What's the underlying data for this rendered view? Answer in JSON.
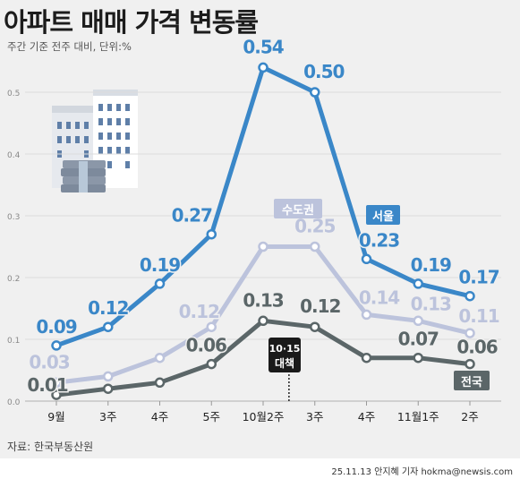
{
  "header": {
    "title": "아파트 매매 가격 변동률",
    "subtitle": "주간 기준 전주 대비, 단위:%"
  },
  "footer": {
    "source": "자료: 한국부동산원",
    "credit": "25.11.13 안지혜 기자 hokma@newsis.com"
  },
  "annotation": {
    "line1": "10·15",
    "line2": "대책"
  },
  "colors": {
    "seoul": "#3a87c8",
    "metro": "#bcc3dc",
    "national": "#5b6668",
    "panel": "#f0f0f0"
  },
  "chart_data": {
    "type": "line",
    "categories": [
      "9월",
      "3주",
      "4주",
      "5주",
      "10월2주",
      "3주",
      "4주",
      "11월1주",
      "2주"
    ],
    "ylim": [
      0,
      0.6
    ],
    "yticks": [
      "0.0",
      "0.1",
      "0.2",
      "0.3",
      "0.4",
      "0.5"
    ],
    "series": [
      {
        "name": "서울",
        "key": "seoul",
        "values": [
          0.09,
          0.12,
          0.19,
          0.27,
          0.54,
          0.5,
          0.23,
          0.19,
          0.17
        ],
        "labels": [
          "0.09",
          "0.12",
          "0.19",
          "0.27",
          "0.54",
          "0.50",
          "0.23",
          "0.19",
          "0.17"
        ]
      },
      {
        "name": "수도권",
        "key": "metro",
        "values": [
          0.03,
          0.04,
          0.07,
          0.12,
          0.25,
          0.25,
          0.14,
          0.13,
          0.11
        ],
        "labels": [
          "0.03",
          "",
          "",
          "0.12",
          "",
          "0.25",
          "0.14",
          "0.13",
          "0.11"
        ]
      },
      {
        "name": "전국",
        "key": "national",
        "values": [
          0.01,
          0.02,
          0.03,
          0.06,
          0.13,
          0.12,
          0.07,
          0.07,
          0.06
        ],
        "labels": [
          "0.01",
          "",
          "",
          "0.06",
          "0.13",
          "0.12",
          "",
          "0.07",
          "0.06"
        ]
      }
    ]
  }
}
